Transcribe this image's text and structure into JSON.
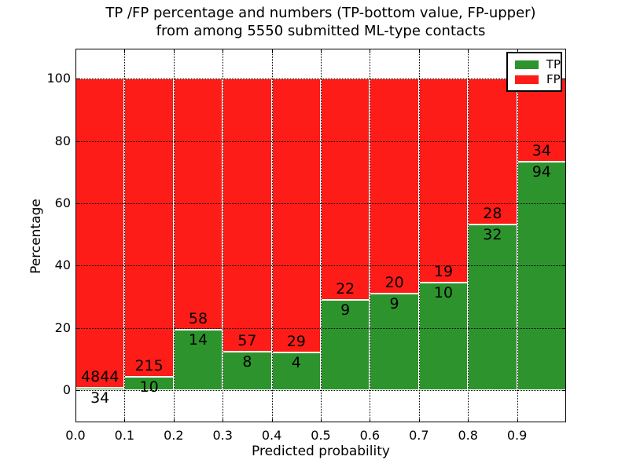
{
  "title": {
    "line1": "TP /FP percentage and numbers (TP-bottom value, FP-upper)",
    "line2": "from among 5550 submitted ML-type contacts"
  },
  "chart_data": {
    "type": "bar",
    "stacked": true,
    "normalized_to_percent": true,
    "title": "TP /FP percentage and numbers (TP-bottom value, FP-upper) from among 5550 submitted ML-type contacts",
    "xlabel": "Predicted probability",
    "ylabel": "Percentage",
    "xlim": [
      0.0,
      1.0
    ],
    "ylim": [
      -10.3,
      109.7
    ],
    "grid": true,
    "grid_style": "dotted",
    "bin_edges": [
      0.0,
      0.1,
      0.2,
      0.3,
      0.4,
      0.5,
      0.6,
      0.7,
      0.8,
      0.9,
      1.0
    ],
    "x_tick_values": [
      0.0,
      0.1,
      0.2,
      0.3,
      0.4,
      0.5,
      0.6,
      0.7,
      0.8,
      0.9
    ],
    "x_tick_labels": [
      "0.0",
      "0.1",
      "0.2",
      "0.3",
      "0.4",
      "0.5",
      "0.6",
      "0.7",
      "0.8",
      "0.9"
    ],
    "y_tick_values": [
      0,
      20,
      40,
      60,
      80,
      100
    ],
    "y_tick_labels": [
      "0",
      "20",
      "40",
      "60",
      "80",
      "100"
    ],
    "series": [
      {
        "name": "TP",
        "color": "#2d942d",
        "counts": [
          34,
          10,
          14,
          8,
          4,
          9,
          9,
          10,
          32,
          94
        ]
      },
      {
        "name": "FP",
        "color": "#fd1c17",
        "counts": [
          4844,
          215,
          58,
          57,
          29,
          22,
          20,
          19,
          28,
          34
        ]
      }
    ],
    "tp_percent_by_bin": [
      0.7,
      4.44,
      19.44,
      12.31,
      12.12,
      29.03,
      31.03,
      34.48,
      53.33,
      73.44
    ],
    "total_contacts": 5550,
    "legend": {
      "position": "upper right",
      "entries": [
        "TP",
        "FP"
      ]
    }
  }
}
